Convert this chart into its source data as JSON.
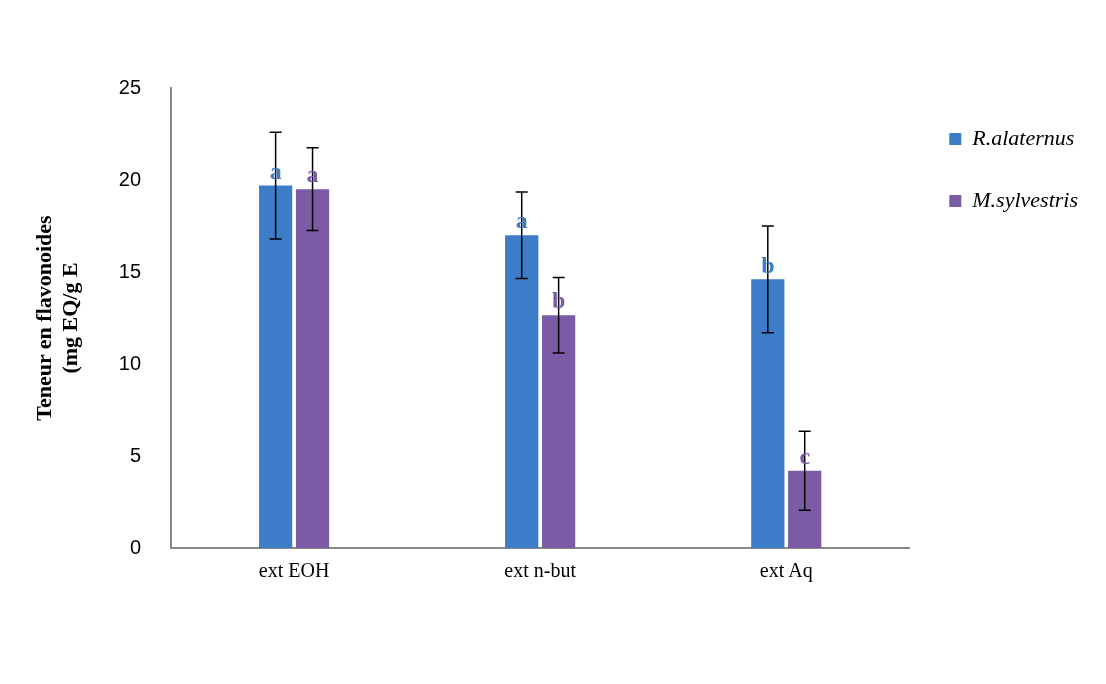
{
  "chart_data": {
    "type": "bar",
    "ylabel": "Teneur en flavonoides\n(mg EQ/g E",
    "categories": [
      "ext EOH",
      "ext n-but",
      "ext Aq"
    ],
    "series": [
      {
        "name": "R.alaternus",
        "color": "#3d7cc9",
        "values": [
          19.7,
          17.0,
          14.6
        ],
        "errors": [
          2.9,
          2.35,
          2.9
        ],
        "value_labels": [
          "a",
          "a",
          "b"
        ]
      },
      {
        "name": "M.sylvestris",
        "color": "#7b5aa6",
        "values": [
          19.5,
          12.65,
          4.2
        ],
        "errors": [
          2.25,
          2.05,
          2.15
        ],
        "value_labels": [
          "a",
          "b",
          "c"
        ]
      }
    ],
    "ylim": [
      0,
      25
    ],
    "yticks": [
      0,
      5,
      10,
      15,
      20,
      25
    ],
    "grid": false,
    "legend": "top right"
  }
}
